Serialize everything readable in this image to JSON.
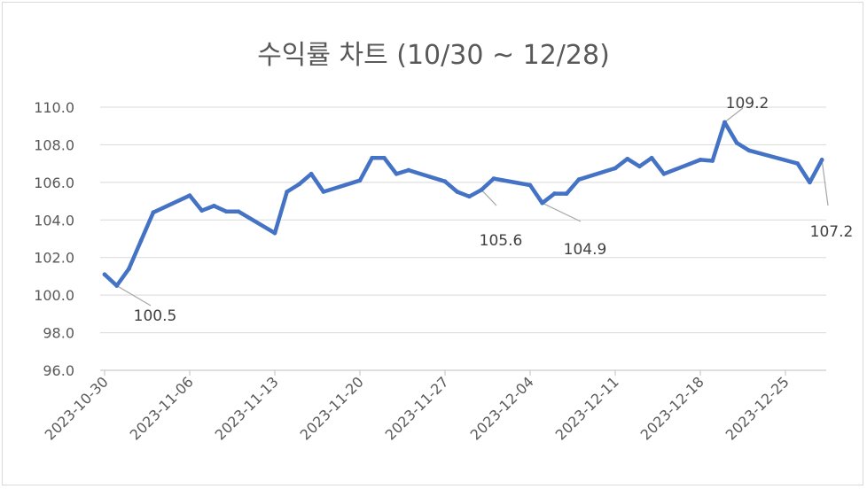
{
  "chart_data": {
    "type": "line",
    "title": "수익률 차트 (10/30 ~ 12/28)",
    "xlabel": "",
    "ylabel": "",
    "ylim": [
      96.0,
      110.0
    ],
    "y_ticks": [
      "96.0",
      "98.0",
      "100.0",
      "102.0",
      "104.0",
      "106.0",
      "108.0",
      "110.0"
    ],
    "x_ticks": [
      "2023-10-30",
      "2023-11-06",
      "2023-11-13",
      "2023-11-20",
      "2023-11-27",
      "2023-12-04",
      "2023-12-11",
      "2023-12-18",
      "2023-12-25"
    ],
    "grid": true,
    "legend": "none",
    "line_color": "#4472c4",
    "series": [
      {
        "x": [
          "2023-10-30",
          "2023-10-31",
          "2023-11-01",
          "2023-11-02",
          "2023-11-03",
          "2023-11-06",
          "2023-11-07",
          "2023-11-08",
          "2023-11-09",
          "2023-11-10",
          "2023-11-13",
          "2023-11-14",
          "2023-11-15",
          "2023-11-16",
          "2023-11-17",
          "2023-11-20",
          "2023-11-21",
          "2023-11-22",
          "2023-11-23",
          "2023-11-24",
          "2023-11-27",
          "2023-11-28",
          "2023-11-29",
          "2023-11-30",
          "2023-12-01",
          "2023-12-04",
          "2023-12-05",
          "2023-12-06",
          "2023-12-07",
          "2023-12-08",
          "2023-12-11",
          "2023-12-12",
          "2023-12-13",
          "2023-12-14",
          "2023-12-15",
          "2023-12-18",
          "2023-12-19",
          "2023-12-20",
          "2023-12-21",
          "2023-12-22",
          "2023-12-26",
          "2023-12-27",
          "2023-12-28"
        ],
        "values": [
          101.1,
          100.5,
          101.4,
          102.9,
          104.4,
          105.3,
          104.5,
          104.75,
          104.45,
          104.45,
          103.3,
          105.5,
          105.9,
          106.45,
          105.5,
          106.1,
          107.3,
          107.3,
          106.45,
          106.65,
          106.05,
          105.5,
          105.25,
          105.6,
          106.2,
          105.85,
          104.9,
          105.4,
          105.4,
          106.15,
          106.75,
          107.25,
          106.85,
          107.3,
          106.45,
          107.2,
          107.15,
          109.2,
          108.1,
          107.7,
          107.0,
          106.0,
          107.2
        ]
      }
    ],
    "annotations": [
      {
        "text": "100.5",
        "x": "2023-10-31",
        "y": 100.5
      },
      {
        "text": "105.6",
        "x": "2023-11-30",
        "y": 105.6
      },
      {
        "text": "104.9",
        "x": "2023-12-05",
        "y": 104.9
      },
      {
        "text": "109.2",
        "x": "2023-12-20",
        "y": 109.2
      },
      {
        "text": "107.2",
        "x": "2023-12-28",
        "y": 107.2
      }
    ]
  }
}
